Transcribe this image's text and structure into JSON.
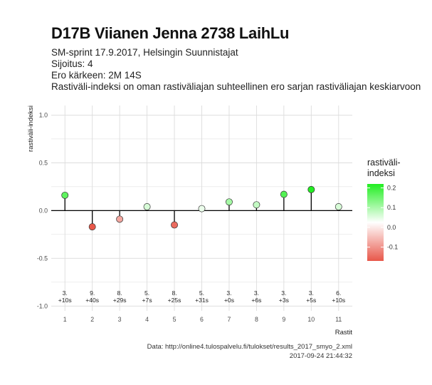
{
  "header": {
    "title": "D17B Viianen Jenna 2738 LaihLu",
    "subtitle_lines": [
      "SM-sprint 17.9.2017, Helsingin Suunnistajat",
      "Sijoitus: 4",
      "Ero kärkeen: 2M 14S",
      "Rastiväli-indeksi on oman rastiväliajan suhteellinen ero sarjan rastiväliajan keskiarvoon"
    ]
  },
  "caption": {
    "source": "Data: http://online4.tulospalvelu.fi/tulokset/results_2017_smyo_2.xml",
    "timestamp": "2017-09-24 21:44:32"
  },
  "colors": {
    "negative": "#e8574a",
    "neutral": "#ffffff",
    "positive": "#22ee22",
    "line": "#000000",
    "grid": "#dcdcdc"
  },
  "chart_data": {
    "type": "scatter",
    "style": "lollipop",
    "xlabel": "Rastit",
    "ylabel": "rastiväli-indeksi",
    "x": [
      1,
      2,
      3,
      4,
      5,
      6,
      7,
      8,
      9,
      10,
      11
    ],
    "x_tick_labels": [
      "1",
      "2",
      "3",
      "4",
      "5",
      "6",
      "7",
      "8",
      "9",
      "10",
      "11"
    ],
    "y": [
      0.16,
      -0.17,
      -0.09,
      0.04,
      -0.15,
      0.02,
      0.09,
      0.06,
      0.17,
      0.22,
      0.04
    ],
    "point_labels": [
      [
        "3.",
        "+10s"
      ],
      [
        "9.",
        "+40s"
      ],
      [
        "8.",
        "+29s"
      ],
      [
        "5.",
        "+7s"
      ],
      [
        "8.",
        "+25s"
      ],
      [
        "5.",
        "+31s"
      ],
      [
        "3.",
        "+0s"
      ],
      [
        "3.",
        "+6s"
      ],
      [
        "3.",
        "+3s"
      ],
      [
        "3.",
        "+5s"
      ],
      [
        "6.",
        "+10s"
      ]
    ],
    "y_ticks": [
      "1.0",
      "0.5",
      "0.0",
      "-0.5",
      "-1.0"
    ],
    "y_tick_values": [
      1.0,
      0.5,
      0.0,
      -0.5,
      -1.0
    ],
    "ylim": [
      -1.0,
      1.0
    ],
    "xlim": [
      0.5,
      11.5
    ],
    "grid": true,
    "legend": {
      "title_lines": [
        "rastiväli-",
        "indeksi"
      ],
      "tick_labels": [
        "0.2",
        "0.1",
        "0.0",
        "-0.1"
      ],
      "tick_values": [
        0.2,
        0.1,
        0.0,
        -0.1
      ],
      "range": [
        -0.17,
        0.22
      ],
      "placement": "right"
    }
  }
}
